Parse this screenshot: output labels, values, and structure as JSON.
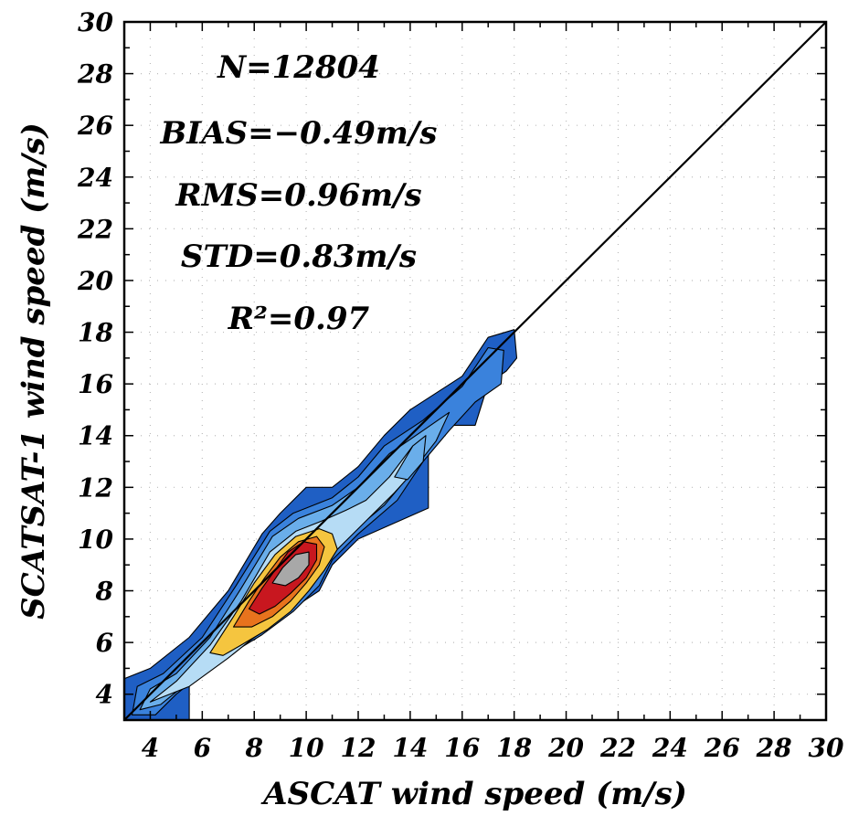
{
  "chart_data": {
    "type": "heatmap",
    "xlabel": "ASCAT wind speed (m/s)",
    "ylabel": "SCATSAT-1 wind speed (m/s)",
    "xlim": [
      3,
      30
    ],
    "ylim": [
      3,
      30
    ],
    "x_ticks": [
      "4",
      "6",
      "8",
      "10",
      "12",
      "14",
      "16",
      "18",
      "20",
      "22",
      "24",
      "26",
      "28",
      "30"
    ],
    "y_ticks": [
      "4",
      "6",
      "8",
      "10",
      "12",
      "14",
      "16",
      "18",
      "20",
      "22",
      "24",
      "26",
      "28",
      "30"
    ],
    "grid": true,
    "reference_line": {
      "x": [
        3,
        30
      ],
      "y": [
        3,
        30
      ]
    },
    "stats": {
      "n": "N=12804",
      "bias": "BIAS=−0.49m/s",
      "rms": "RMS=0.96m/s",
      "std": "STD=0.83m/s",
      "r2": "R²=0.97"
    },
    "density_contours": [
      {
        "level": 1,
        "color": "#1f5fc4",
        "points": [
          [
            3,
            3
          ],
          [
            3,
            4.6
          ],
          [
            4,
            5.0
          ],
          [
            5.5,
            6.2
          ],
          [
            7,
            8
          ],
          [
            8.3,
            10.2
          ],
          [
            9,
            11
          ],
          [
            10,
            12
          ],
          [
            11,
            12
          ],
          [
            12,
            12.8
          ],
          [
            13,
            14
          ],
          [
            14,
            15
          ],
          [
            16,
            16.3
          ],
          [
            17,
            17.8
          ],
          [
            18,
            18.1
          ],
          [
            18.1,
            17
          ],
          [
            17.7,
            16.5
          ],
          [
            17,
            16
          ],
          [
            16.5,
            14.4
          ],
          [
            15,
            14.4
          ],
          [
            14.7,
            13.2
          ],
          [
            14.7,
            11.2
          ],
          [
            12,
            10
          ],
          [
            11,
            9
          ],
          [
            10.5,
            8
          ],
          [
            9,
            7
          ],
          [
            8,
            6.1
          ],
          [
            6,
            5.6
          ],
          [
            5.5,
            5
          ],
          [
            5.5,
            3
          ],
          [
            4.8,
            3
          ]
        ]
      },
      {
        "level": 2,
        "color": "#3a82dc",
        "points": [
          [
            3.3,
            3.2
          ],
          [
            3.5,
            4.3
          ],
          [
            4.5,
            4.8
          ],
          [
            6,
            6.2
          ],
          [
            7.3,
            8.2
          ],
          [
            8.6,
            10.3
          ],
          [
            9.5,
            11
          ],
          [
            11,
            11.6
          ],
          [
            12,
            12.4
          ],
          [
            13,
            13.6
          ],
          [
            14.5,
            14.6
          ],
          [
            16,
            15.9
          ],
          [
            17,
            17.4
          ],
          [
            17.6,
            17.3
          ],
          [
            17.5,
            16
          ],
          [
            16.5,
            15.3
          ],
          [
            15.5,
            14.2
          ],
          [
            14.5,
            13
          ],
          [
            13.5,
            11.5
          ],
          [
            12,
            10.2
          ],
          [
            11,
            9.2
          ],
          [
            10.5,
            8.2
          ],
          [
            9.5,
            7.2
          ],
          [
            8.3,
            6.3
          ],
          [
            6.5,
            5.2
          ],
          [
            5,
            4
          ],
          [
            4.2,
            3.2
          ]
        ]
      },
      {
        "level": 3,
        "color": "#6aaeea",
        "points": [
          [
            3.6,
            3.4
          ],
          [
            4,
            4.2
          ],
          [
            5,
            4.8
          ],
          [
            6.3,
            6.2
          ],
          [
            7.5,
            8.1
          ],
          [
            8.7,
            10.1
          ],
          [
            9.7,
            10.8
          ],
          [
            11,
            11.3
          ],
          [
            12,
            12
          ],
          [
            13.2,
            13.3
          ],
          [
            14.5,
            14.2
          ],
          [
            15.5,
            14.9
          ],
          [
            15,
            13.8
          ],
          [
            14,
            12.5
          ],
          [
            13,
            11.3
          ],
          [
            11.8,
            10.3
          ],
          [
            11,
            9.4
          ],
          [
            10.3,
            8.4
          ],
          [
            9.4,
            7.4
          ],
          [
            8.3,
            6.4
          ],
          [
            6.8,
            5.4
          ],
          [
            5.5,
            4.5
          ],
          [
            4.4,
            3.6
          ]
        ]
      },
      {
        "level": 4,
        "color": "#b6dcf5",
        "points": [
          [
            4,
            3.7
          ],
          [
            5,
            4.5
          ],
          [
            6.3,
            5.9
          ],
          [
            7.5,
            7.6
          ],
          [
            8.6,
            9.5
          ],
          [
            9.6,
            10.3
          ],
          [
            10.6,
            10.7
          ],
          [
            11.5,
            11.1
          ],
          [
            12.3,
            11.5
          ],
          [
            13.2,
            12.4
          ],
          [
            14.1,
            13.6
          ],
          [
            14.3,
            12.8
          ],
          [
            13.4,
            11.8
          ],
          [
            12.3,
            10.7
          ],
          [
            11.2,
            9.6
          ],
          [
            10.4,
            8.6
          ],
          [
            9.6,
            7.6
          ],
          [
            8.5,
            6.6
          ],
          [
            7,
            5.4
          ],
          [
            5.5,
            4.3
          ]
        ]
      },
      {
        "level": 5,
        "color": "#f5c53f",
        "points": [
          [
            6.3,
            5.6
          ],
          [
            7.2,
            7.0
          ],
          [
            8,
            8.3
          ],
          [
            8.8,
            9.4
          ],
          [
            9.6,
            10.1
          ],
          [
            10.5,
            10.4
          ],
          [
            11,
            10.2
          ],
          [
            11.2,
            9.6
          ],
          [
            10.7,
            8.8
          ],
          [
            10.1,
            8
          ],
          [
            9.4,
            7.2
          ],
          [
            8.5,
            6.5
          ],
          [
            7.5,
            5.9
          ],
          [
            6.8,
            5.5
          ]
        ]
      },
      {
        "level": 6,
        "color": "#e8731d",
        "points": [
          [
            7.2,
            6.6
          ],
          [
            7.8,
            7.6
          ],
          [
            8.4,
            8.5
          ],
          [
            9,
            9.3
          ],
          [
            9.7,
            9.9
          ],
          [
            10.4,
            10.1
          ],
          [
            10.7,
            9.7
          ],
          [
            10.5,
            9
          ],
          [
            10,
            8.3
          ],
          [
            9.4,
            7.6
          ],
          [
            8.7,
            7
          ],
          [
            7.9,
            6.6
          ]
        ]
      },
      {
        "level": 7,
        "color": "#c8171f",
        "points": [
          [
            7.8,
            7.3
          ],
          [
            8.3,
            8.1
          ],
          [
            8.8,
            8.8
          ],
          [
            9.3,
            9.5
          ],
          [
            9.9,
            9.9
          ],
          [
            10.4,
            9.8
          ],
          [
            10.4,
            9.2
          ],
          [
            10,
            8.5
          ],
          [
            9.4,
            7.9
          ],
          [
            8.8,
            7.4
          ],
          [
            8.2,
            7.1
          ]
        ]
      },
      {
        "level": 8,
        "color": "#a8a8a8",
        "points": [
          [
            8.7,
            8.3
          ],
          [
            9.1,
            8.9
          ],
          [
            9.6,
            9.4
          ],
          [
            10.1,
            9.5
          ],
          [
            10.1,
            9.0
          ],
          [
            9.7,
            8.5
          ],
          [
            9.2,
            8.2
          ]
        ]
      },
      {
        "level": 9,
        "color": "#6aaeea",
        "points": [
          [
            13.4,
            12.4
          ],
          [
            14.1,
            13.6
          ],
          [
            14.6,
            14.0
          ],
          [
            14.5,
            13.0
          ],
          [
            13.9,
            12.3
          ]
        ]
      }
    ]
  }
}
